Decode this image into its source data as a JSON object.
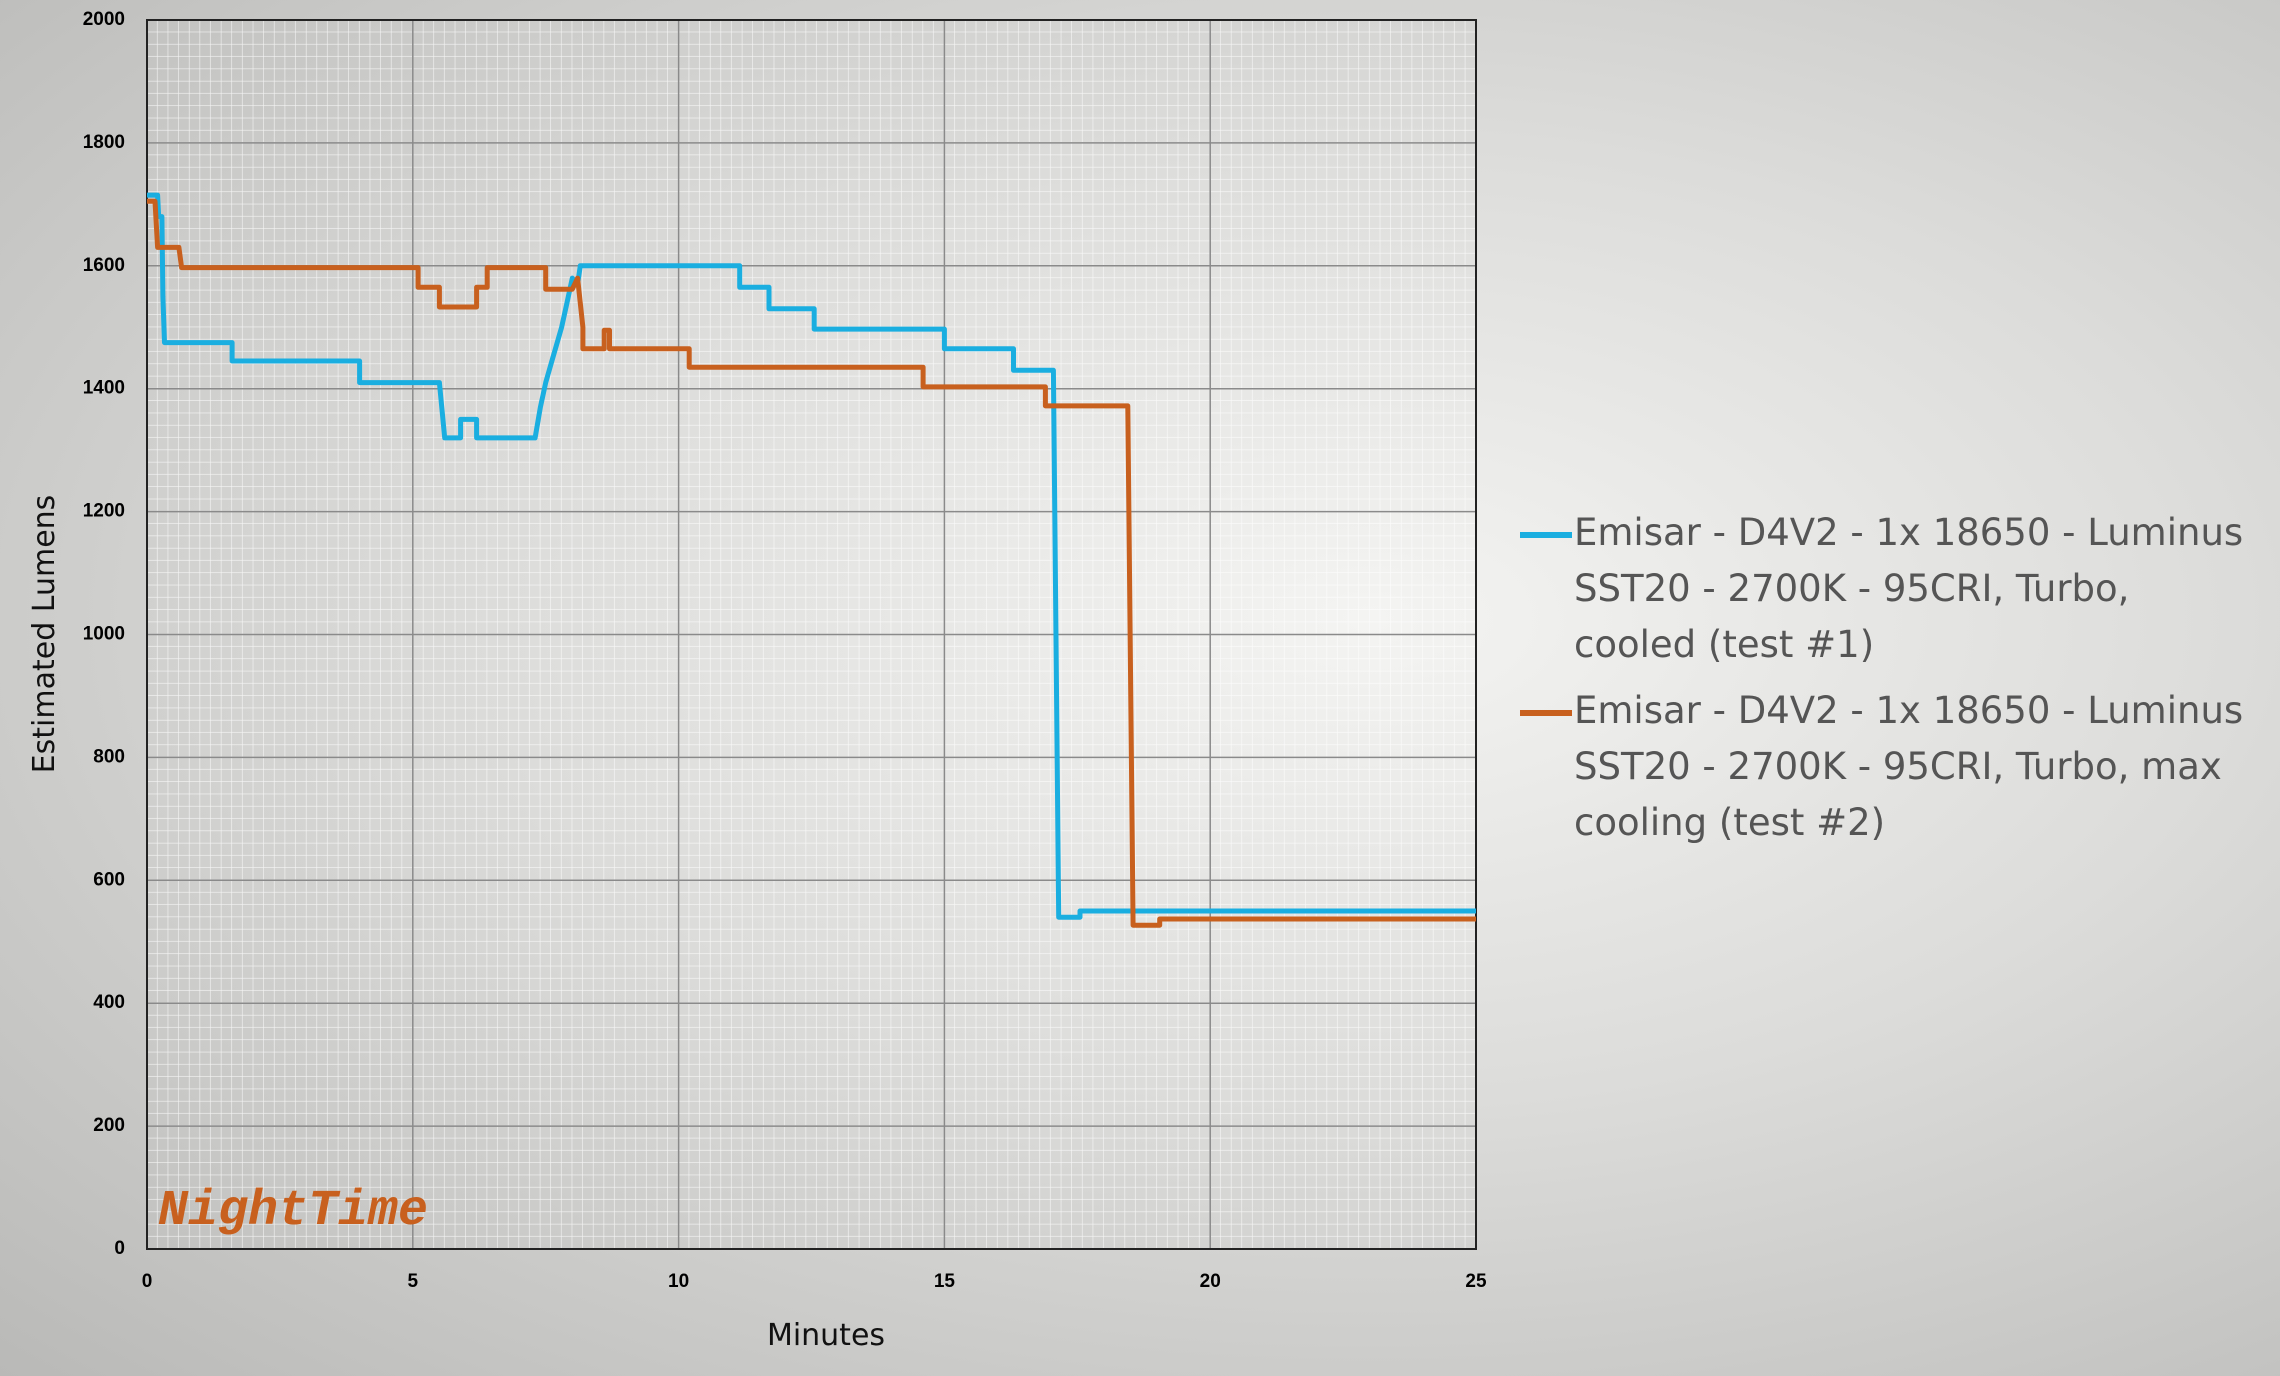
{
  "chart_data": {
    "type": "line",
    "xlabel": "Minutes",
    "ylabel": "Estimated Lumens",
    "watermark": "NightTime",
    "xlim": [
      0,
      25
    ],
    "xticks": [
      0,
      5,
      10,
      15,
      20,
      25
    ],
    "ylim": [
      0,
      2000
    ],
    "yticks": [
      0,
      200,
      400,
      600,
      800,
      1000,
      1200,
      1400,
      1600,
      1800,
      2000
    ],
    "grid": true,
    "legend": "right",
    "series": [
      {
        "name": "Emisar - D4V2 - 1x 18650 - Luminus SST20 - 2700K - 95CRI, Turbo, cooled (test #1)",
        "color": "#1aaee0",
        "x": [
          0,
          0.2,
          0.22,
          0.28,
          0.3,
          0.33,
          1.6,
          1.6,
          4.0,
          4.0,
          5.5,
          5.6,
          5.9,
          5.9,
          6.2,
          6.2,
          7.3,
          7.4,
          7.5,
          7.6,
          7.7,
          7.8,
          7.9,
          8.0,
          8.1,
          8.15,
          11.15,
          11.15,
          11.7,
          11.7,
          12.55,
          12.55,
          15.0,
          15.0,
          16.3,
          16.3,
          17.05,
          17.15,
          17.55,
          17.55,
          25
        ],
        "values": [
          1715,
          1715,
          1680,
          1680,
          1550,
          1475,
          1475,
          1445,
          1445,
          1410,
          1410,
          1320,
          1320,
          1350,
          1350,
          1320,
          1320,
          1370,
          1410,
          1440,
          1470,
          1500,
          1540,
          1580,
          1570,
          1600,
          1600,
          1565,
          1565,
          1530,
          1530,
          1497,
          1497,
          1465,
          1465,
          1430,
          1430,
          540,
          540,
          550,
          550
        ]
      },
      {
        "name": "Emisar - D4V2 - 1x 18650 - Luminus SST20 - 2700K - 95CRI, Turbo, max cooling (test #2)",
        "color": "#c8601e",
        "x": [
          0,
          0.15,
          0.2,
          0.6,
          0.65,
          5.1,
          5.1,
          5.5,
          5.5,
          6.2,
          6.2,
          6.4,
          6.4,
          7.5,
          7.5,
          8.0,
          8.1,
          8.2,
          8.2,
          8.6,
          8.6,
          8.7,
          8.7,
          10.2,
          10.2,
          14.6,
          14.6,
          16.9,
          16.9,
          18.45,
          18.55,
          19.05,
          19.05,
          25
        ],
        "values": [
          1705,
          1705,
          1630,
          1630,
          1597,
          1597,
          1565,
          1565,
          1533,
          1533,
          1565,
          1565,
          1597,
          1597,
          1562,
          1562,
          1580,
          1500,
          1465,
          1465,
          1495,
          1495,
          1465,
          1465,
          1435,
          1435,
          1403,
          1403,
          1372,
          1372,
          527,
          527,
          537,
          537
        ]
      }
    ]
  }
}
